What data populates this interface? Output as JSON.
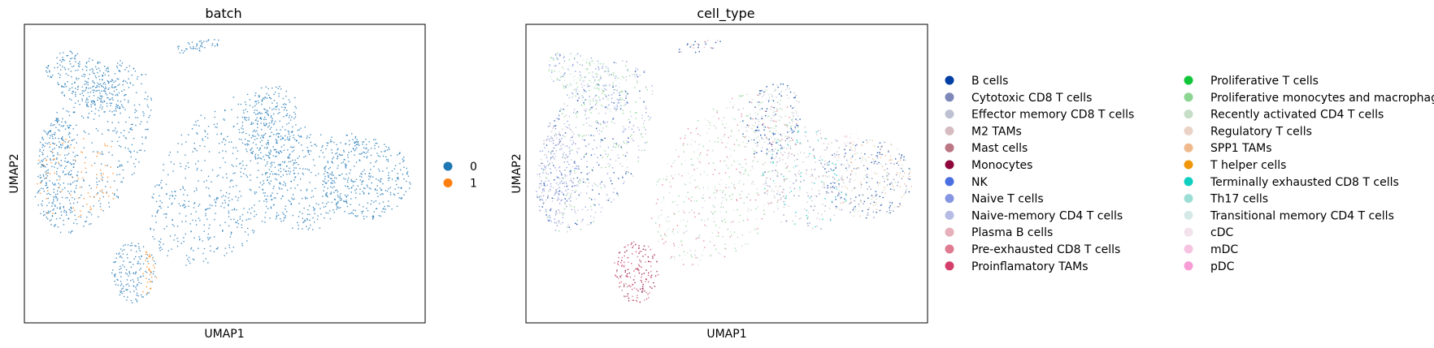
{
  "chart_data": [
    {
      "type": "scatter",
      "title": "batch",
      "xlabel": "UMAP1",
      "ylabel": "UMAP2",
      "ticks": false,
      "legend_placement": "right",
      "legend": [
        {
          "label": "0",
          "color": "#1f77b4"
        },
        {
          "label": "1",
          "color": "#ff7f0e"
        }
      ]
    },
    {
      "type": "scatter",
      "title": "cell_type",
      "xlabel": "UMAP1",
      "ylabel": "UMAP2",
      "ticks": false,
      "legend_placement": "right",
      "legend_columns": 2,
      "legend": [
        {
          "label": "B cells",
          "color": "#023fa5"
        },
        {
          "label": "Cytotoxic CD8 T cells",
          "color": "#7d87b9"
        },
        {
          "label": "Effector memory CD8 T cells",
          "color": "#bec1d4"
        },
        {
          "label": "M2 TAMs",
          "color": "#d6bcc0"
        },
        {
          "label": "Mast cells",
          "color": "#bb7784"
        },
        {
          "label": "Monocytes",
          "color": "#8e063b"
        },
        {
          "label": "NK",
          "color": "#4a6fe3"
        },
        {
          "label": "Naive T cells",
          "color": "#8595e1"
        },
        {
          "label": "Naive-memory CD4 T cells",
          "color": "#b5bbe3"
        },
        {
          "label": "Plasma B cells",
          "color": "#e6afb9"
        },
        {
          "label": "Pre-exhausted CD8 T cells",
          "color": "#e07b91"
        },
        {
          "label": "Proinflamatory TAMs",
          "color": "#d33f6a"
        },
        {
          "label": "Proliferative T cells",
          "color": "#11c638"
        },
        {
          "label": "Proliferative monocytes and macrophages",
          "color": "#8dd593"
        },
        {
          "label": "Recently activated CD4 T cells",
          "color": "#c6dec7"
        },
        {
          "label": "Regulatory T cells",
          "color": "#ead3c6"
        },
        {
          "label": "SPP1 TAMs",
          "color": "#f0b98d"
        },
        {
          "label": "T helper cells",
          "color": "#ef9708"
        },
        {
          "label": "Terminally exhausted CD8 T cells",
          "color": "#0fcfc0"
        },
        {
          "label": "Th17 cells",
          "color": "#9cded6"
        },
        {
          "label": "Transitional memory CD4 T cells",
          "color": "#d5eae7"
        },
        {
          "label": "cDC",
          "color": "#f3e1eb"
        },
        {
          "label": "mDC",
          "color": "#f6c4e1"
        },
        {
          "label": "pDC",
          "color": "#f79cd4"
        }
      ]
    }
  ]
}
